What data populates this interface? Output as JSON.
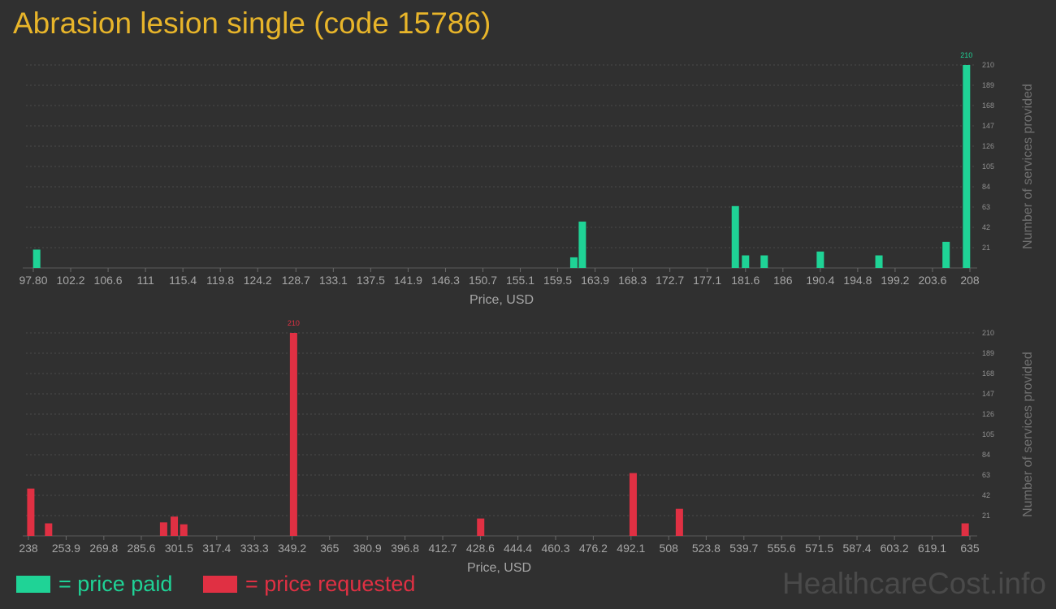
{
  "title": "Abrasion lesion single (code 15786)",
  "legend": {
    "paid": {
      "swatch_color": "#1fd396",
      "label": "= price paid"
    },
    "requested": {
      "swatch_color": "#e03043",
      "label": "= price requested"
    }
  },
  "watermark": "HealthcareCost.info",
  "chart_data": [
    {
      "type": "bar",
      "name": "price-paid-histogram",
      "color": "#1fd396",
      "xlabel": "Price, USD",
      "ylabel": "Number of services provided",
      "xlim": [
        97.8,
        208
      ],
      "ylim": [
        0,
        210
      ],
      "x_ticks": [
        "97.80",
        "102.2",
        "106.6",
        "111",
        "115.4",
        "119.8",
        "124.2",
        "128.7",
        "133.1",
        "137.5",
        "141.9",
        "146.3",
        "150.7",
        "155.1",
        "159.5",
        "163.9",
        "168.3",
        "172.7",
        "177.1",
        "181.6",
        "186",
        "190.4",
        "194.8",
        "199.2",
        "203.6",
        "208"
      ],
      "x_tick_values": [
        97.8,
        102.2,
        106.6,
        111,
        115.4,
        119.8,
        124.2,
        128.7,
        133.1,
        137.5,
        141.9,
        146.3,
        150.7,
        155.1,
        159.5,
        163.9,
        168.3,
        172.7,
        177.1,
        181.6,
        186,
        190.4,
        194.8,
        199.2,
        203.6,
        208
      ],
      "y_ticks": [
        21,
        42,
        63,
        84,
        105,
        126,
        147,
        168,
        189,
        210
      ],
      "peak_label": "210",
      "bars": [
        {
          "x": 98.2,
          "y": 19
        },
        {
          "x": 161.4,
          "y": 11
        },
        {
          "x": 162.4,
          "y": 48
        },
        {
          "x": 180.4,
          "y": 64
        },
        {
          "x": 181.6,
          "y": 13
        },
        {
          "x": 183.8,
          "y": 13
        },
        {
          "x": 190.4,
          "y": 17
        },
        {
          "x": 197.3,
          "y": 13
        },
        {
          "x": 205.2,
          "y": 27
        },
        {
          "x": 207.6,
          "y": 210
        }
      ]
    },
    {
      "type": "bar",
      "name": "price-requested-histogram",
      "color": "#e03043",
      "xlabel": "Price, USD",
      "ylabel": "Number of services provided",
      "xlim": [
        238,
        635
      ],
      "ylim": [
        0,
        210
      ],
      "x_ticks": [
        "238",
        "253.9",
        "269.8",
        "285.6",
        "301.5",
        "317.4",
        "333.3",
        "349.2",
        "365",
        "380.9",
        "396.8",
        "412.7",
        "428.6",
        "444.4",
        "460.3",
        "476.2",
        "492.1",
        "508",
        "523.8",
        "539.7",
        "555.6",
        "571.5",
        "587.4",
        "603.2",
        "619.1",
        "635"
      ],
      "x_tick_values": [
        238,
        253.9,
        269.8,
        285.6,
        301.5,
        317.4,
        333.3,
        349.2,
        365,
        380.9,
        396.8,
        412.7,
        428.6,
        444.4,
        460.3,
        476.2,
        492.1,
        508,
        523.8,
        539.7,
        555.6,
        571.5,
        587.4,
        603.2,
        619.1,
        635
      ],
      "y_ticks": [
        21,
        42,
        63,
        84,
        105,
        126,
        147,
        168,
        189,
        210
      ],
      "peak_label": "210",
      "bars": [
        {
          "x": 239,
          "y": 49
        },
        {
          "x": 246.5,
          "y": 13
        },
        {
          "x": 295,
          "y": 14
        },
        {
          "x": 299.5,
          "y": 20
        },
        {
          "x": 303.5,
          "y": 12
        },
        {
          "x": 349.8,
          "y": 210
        },
        {
          "x": 428.7,
          "y": 18
        },
        {
          "x": 493,
          "y": 65
        },
        {
          "x": 512.5,
          "y": 28
        },
        {
          "x": 633,
          "y": 13
        }
      ]
    }
  ]
}
